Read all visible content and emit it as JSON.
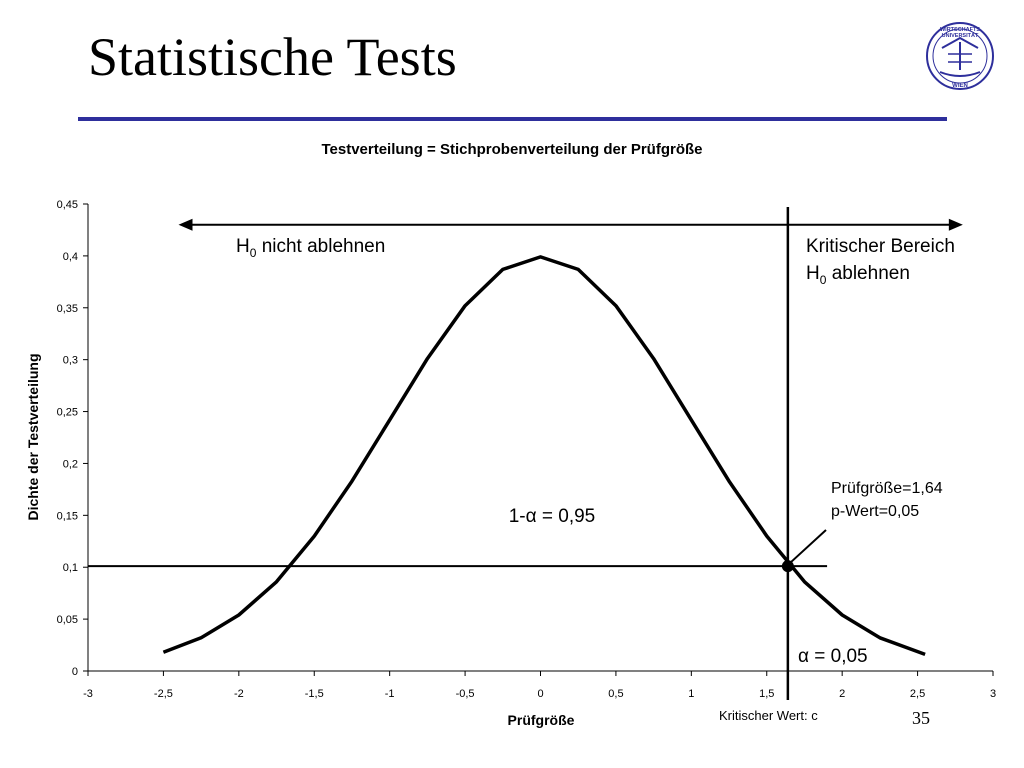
{
  "slide": {
    "title": "Statistische Tests",
    "page_number": "35",
    "logo": {
      "icon": "university-seal-icon",
      "line1": "WIRTSCHAFTS",
      "line2": "UNIVERSITÄT",
      "line3": "WIEN",
      "color": "#2e2f9c"
    },
    "rule_color": "#2e2f9c"
  },
  "chart_data": {
    "type": "line",
    "title": "Testverteilung = Stichprobenverteilung der Prüfgröße",
    "xlabel": "Prüfgröße",
    "ylabel": "Dichte der Testverteilung",
    "xlim": [
      -3,
      3
    ],
    "ylim": [
      0,
      0.45
    ],
    "x_ticks": [
      -3,
      -2.5,
      -2,
      -1.5,
      -1,
      -0.5,
      0,
      0.5,
      1,
      1.5,
      2,
      2.5,
      3
    ],
    "x_tick_labels": [
      "-3",
      "-2,5",
      "-2",
      "-1,5",
      "-1",
      "-0,5",
      "0",
      "0,5",
      "1",
      "1,5",
      "2",
      "2,5",
      "3"
    ],
    "y_ticks": [
      0,
      0.05,
      0.1,
      0.15,
      0.2,
      0.25,
      0.3,
      0.35,
      0.4,
      0.45
    ],
    "y_tick_labels": [
      "0",
      "0,05",
      "0,1",
      "0,15",
      "0,2",
      "0,25",
      "0,3",
      "0,35",
      "0,4",
      "0,45"
    ],
    "grid": false,
    "series": [
      {
        "color": "#000000",
        "x": [
          -2.5,
          -2.25,
          -2.0,
          -1.75,
          -1.5,
          -1.25,
          -1.0,
          -0.75,
          -0.5,
          -0.25,
          0,
          0.25,
          0.5,
          0.75,
          1.0,
          1.25,
          1.5,
          1.75,
          2.0,
          2.25,
          2.55
        ],
        "y": [
          0.018,
          0.032,
          0.054,
          0.086,
          0.13,
          0.183,
          0.242,
          0.301,
          0.352,
          0.387,
          0.399,
          0.387,
          0.352,
          0.301,
          0.242,
          0.183,
          0.13,
          0.086,
          0.054,
          0.032,
          0.016
        ]
      }
    ],
    "critical_value_x": 1.64,
    "marker_point": {
      "x": 1.64,
      "y": 0.101
    },
    "horizontal_line": {
      "y": 0.101,
      "x_start": -3,
      "x_end": 1.9
    },
    "double_arrow": {
      "y": 0.43,
      "x_start": -2.4,
      "x_end": 2.8
    },
    "annotations": {
      "h0_not_reject": {
        "base": "H",
        "sub": "0",
        "rest": " nicht ablehnen"
      },
      "critical_region_line1": "Kritischer Bereich",
      "critical_region_line2": {
        "base": "H",
        "sub": "0",
        "rest": " ablehnen"
      },
      "test_stat": "Prüfgröße=1,64",
      "p_value": "p-Wert=0,05",
      "one_minus_alpha": "1-α = 0,95",
      "alpha": "α = 0,05",
      "critical_value_label": "Kritischer Wert: c"
    }
  }
}
